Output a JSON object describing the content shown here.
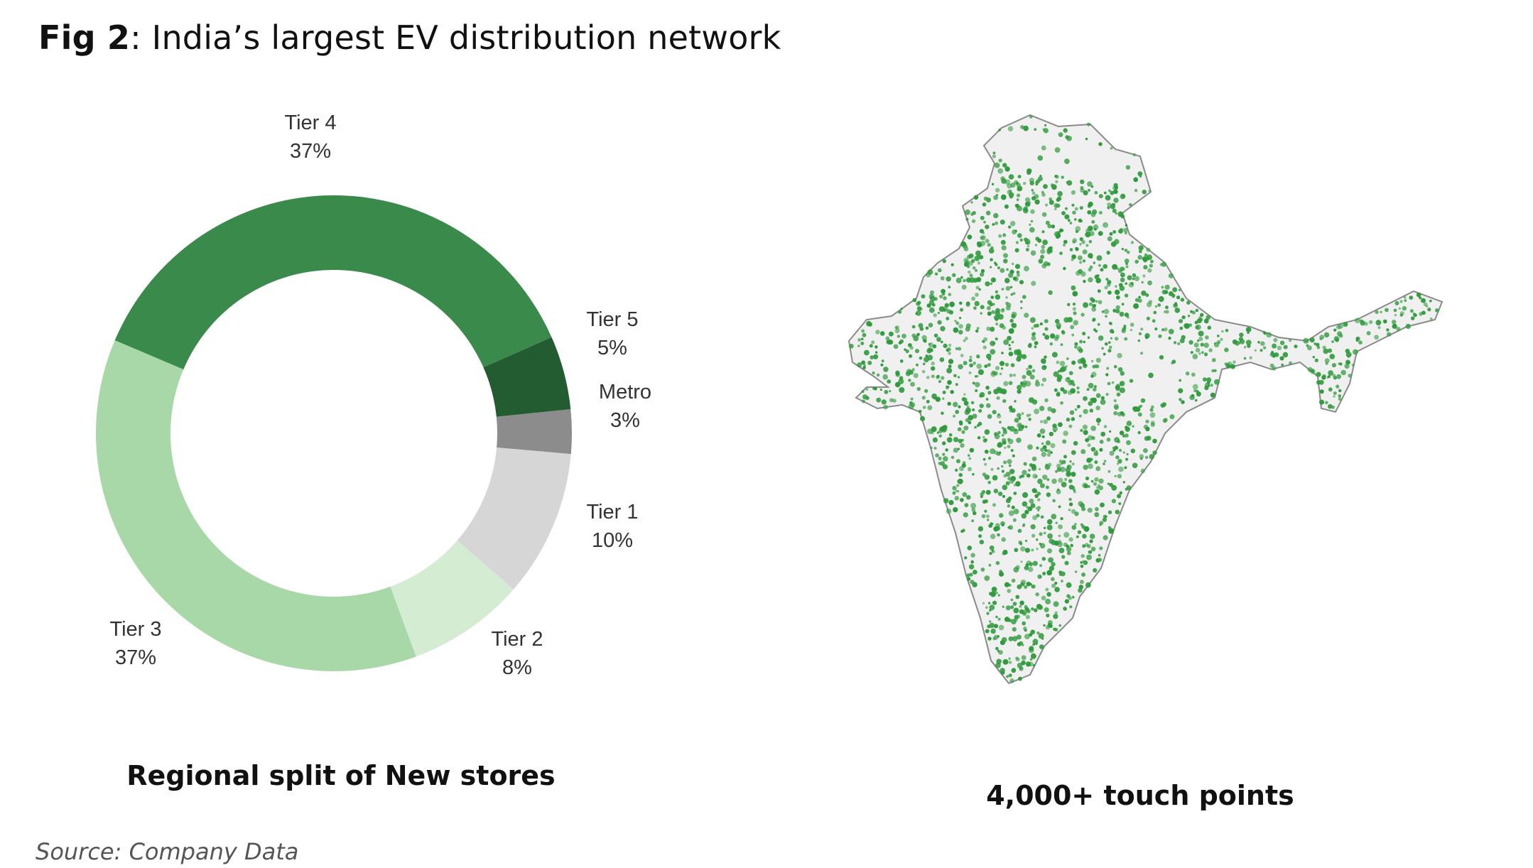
{
  "figure": {
    "label": "Fig 2",
    "separator": ":",
    "title": "India’s largest EV distribution network"
  },
  "chart_data": {
    "type": "pie",
    "subtype": "donut",
    "caption": "Regional split of New stores",
    "slices": [
      {
        "label": "Tier 4",
        "value": 37,
        "value_label": "37%",
        "color": "#3a8a4b"
      },
      {
        "label": "Tier 5",
        "value": 5,
        "value_label": "5%",
        "color": "#245c32"
      },
      {
        "label": "Metro",
        "value": 3,
        "value_label": "3%",
        "color": "#8c8c8c"
      },
      {
        "label": "Tier 1",
        "value": 10,
        "value_label": "10%",
        "color": "#d6d6d6"
      },
      {
        "label": "Tier 2",
        "value": 8,
        "value_label": "8%",
        "color": "#d3ecd2"
      },
      {
        "label": "Tier 3",
        "value": 37,
        "value_label": "37%",
        "color": "#a8d8a8"
      }
    ]
  },
  "map": {
    "caption": "4,000+ touch points",
    "land_color": "#f0f0f0",
    "border_color": "#8a8a8a",
    "dot_color": "#2f9a3c"
  },
  "source": "Source: Company Data"
}
